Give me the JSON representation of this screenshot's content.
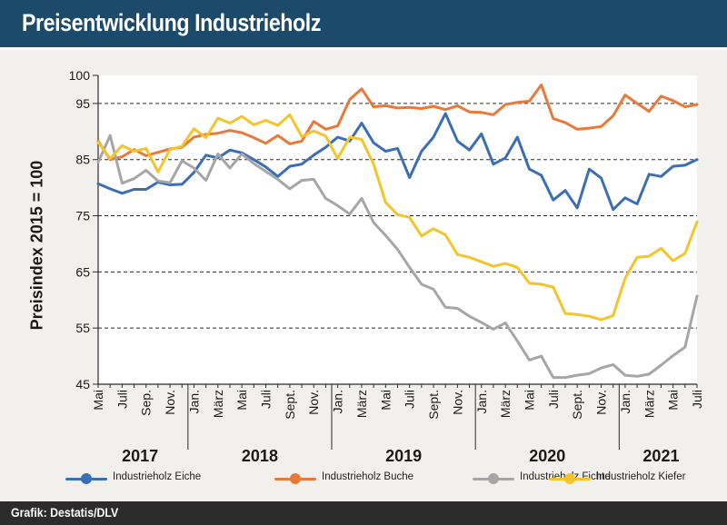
{
  "header": {
    "title": "Preisentwicklung Industrieholz"
  },
  "footer": {
    "credit": "Grafik: Destatis/DLV"
  },
  "colors": {
    "header_bg": "#1c4a6a",
    "eiche": "#3b6eb5",
    "buche": "#e8793a",
    "fichte": "#a6a6a6",
    "kiefer": "#f5c42a"
  },
  "chart_data": {
    "type": "line",
    "ylabel": "Preisindex 2015 = 100",
    "ylim": [
      45,
      100
    ],
    "yticks": [
      45,
      55,
      65,
      75,
      85,
      95,
      100
    ],
    "x": [
      "2017-05",
      "2017-06",
      "2017-07",
      "2017-08",
      "2017-09",
      "2017-10",
      "2017-11",
      "2017-12",
      "2018-01",
      "2018-02",
      "2018-03",
      "2018-04",
      "2018-05",
      "2018-06",
      "2018-07",
      "2018-08",
      "2018-09",
      "2018-10",
      "2018-11",
      "2018-12",
      "2019-01",
      "2019-02",
      "2019-03",
      "2019-04",
      "2019-05",
      "2019-06",
      "2019-07",
      "2019-08",
      "2019-09",
      "2019-10",
      "2019-11",
      "2019-12",
      "2020-01",
      "2020-02",
      "2020-03",
      "2020-04",
      "2020-05",
      "2020-06",
      "2020-07",
      "2020-08",
      "2020-09",
      "2020-10",
      "2020-11",
      "2020-12",
      "2021-01",
      "2021-02",
      "2021-03",
      "2021-04",
      "2021-05",
      "2021-06",
      "2021-07"
    ],
    "tick_labels": [
      {
        "x": "2017-05",
        "label": "Mai"
      },
      {
        "x": "2017-07",
        "label": "Juli"
      },
      {
        "x": "2017-09",
        "label": "Sep."
      },
      {
        "x": "2017-11",
        "label": "Nov."
      },
      {
        "x": "2018-01",
        "label": "Jan."
      },
      {
        "x": "2018-03",
        "label": "März"
      },
      {
        "x": "2018-05",
        "label": "Mai"
      },
      {
        "x": "2018-07",
        "label": "Juli"
      },
      {
        "x": "2018-09",
        "label": "Sept."
      },
      {
        "x": "2018-11",
        "label": "Nov."
      },
      {
        "x": "2019-01",
        "label": "Jan."
      },
      {
        "x": "2019-03",
        "label": "März"
      },
      {
        "x": "2019-05",
        "label": "Mai"
      },
      {
        "x": "2019-07",
        "label": "Juli"
      },
      {
        "x": "2019-09",
        "label": "Sept."
      },
      {
        "x": "2019-11",
        "label": "Nov."
      },
      {
        "x": "2020-01",
        "label": "Jan."
      },
      {
        "x": "2020-03",
        "label": "März"
      },
      {
        "x": "2020-05",
        "label": "Mai"
      },
      {
        "x": "2020-07",
        "label": "Juli"
      },
      {
        "x": "2020-09",
        "label": "Sept."
      },
      {
        "x": "2020-11",
        "label": "Nov."
      },
      {
        "x": "2021-01",
        "label": "Jan."
      },
      {
        "x": "2021-03",
        "label": "März"
      },
      {
        "x": "2021-05",
        "label": "Mai"
      },
      {
        "x": "2021-07",
        "label": "Juli"
      }
    ],
    "years": [
      {
        "label": "2017",
        "from": "2017-05",
        "to": "2017-12"
      },
      {
        "label": "2018",
        "from": "2018-01",
        "to": "2018-12"
      },
      {
        "label": "2019",
        "from": "2019-01",
        "to": "2019-12"
      },
      {
        "label": "2020",
        "from": "2020-01",
        "to": "2020-12"
      },
      {
        "label": "2021",
        "from": "2021-01",
        "to": "2021-07"
      }
    ],
    "grid": "horizontal dashed at y ticks",
    "legend_position": "bottom",
    "series": [
      {
        "name": "Industrieholz Eiche",
        "color": "#3b6eb5",
        "values": [
          80.7,
          79.8,
          79.0,
          79.7,
          79.7,
          81.0,
          80.5,
          80.6,
          82.7,
          85.8,
          85.3,
          86.7,
          86.2,
          85.0,
          83.7,
          82.0,
          83.8,
          84.2,
          85.8,
          87.2,
          89.0,
          88.3,
          91.5,
          88.0,
          86.5,
          87.0,
          81.8,
          86.5,
          89.0,
          93.2,
          88.3,
          86.7,
          89.6,
          84.2,
          85.3,
          89.0,
          83.3,
          82.2,
          77.8,
          79.5,
          76.4,
          83.3,
          81.7,
          76.1,
          78.2,
          77.1,
          82.4,
          82.0,
          83.8,
          84.0,
          85.0
        ]
      },
      {
        "name": "Industrieholz Buche",
        "color": "#e8793a",
        "values": [
          88.3,
          85.0,
          85.5,
          86.8,
          85.7,
          86.3,
          86.9,
          87.2,
          89.0,
          89.5,
          89.7,
          90.2,
          89.8,
          88.9,
          87.9,
          89.3,
          87.8,
          88.3,
          91.8,
          90.4,
          91.0,
          95.7,
          97.6,
          94.4,
          94.6,
          94.2,
          94.3,
          94.1,
          94.5,
          93.9,
          94.6,
          93.5,
          93.4,
          93.0,
          94.8,
          95.2,
          95.4,
          98.3,
          92.3,
          91.6,
          90.4,
          90.6,
          90.9,
          92.8,
          96.5,
          95.0,
          93.6,
          96.3,
          95.5,
          94.4,
          94.8
        ]
      },
      {
        "name": "Industrieholz Fichte",
        "color": "#a6a6a6",
        "values": [
          84.5,
          89.3,
          80.8,
          81.6,
          83.1,
          81.2,
          80.9,
          84.8,
          83.5,
          81.3,
          86.0,
          83.5,
          86.0,
          84.3,
          82.9,
          81.5,
          79.8,
          81.3,
          81.5,
          78.1,
          76.8,
          75.3,
          78.1,
          73.8,
          71.5,
          69.0,
          65.8,
          62.8,
          61.9,
          58.7,
          58.5,
          57.1,
          56.0,
          54.8,
          55.9,
          52.7,
          49.3,
          50.0,
          46.2,
          46.2,
          46.6,
          46.9,
          47.9,
          48.5,
          46.6,
          46.4,
          46.8,
          48.4,
          50.1,
          51.6,
          60.7
        ]
      },
      {
        "name": "Industrieholz Kiefer",
        "color": "#f5c42a",
        "values": [
          88.1,
          85.2,
          87.5,
          86.5,
          87.0,
          82.8,
          86.8,
          87.4,
          90.5,
          88.9,
          92.4,
          91.5,
          92.7,
          91.2,
          92.0,
          91.1,
          93.0,
          89.1,
          90.1,
          89.2,
          85.2,
          89.0,
          88.6,
          84.2,
          77.4,
          75.2,
          74.7,
          71.4,
          72.7,
          71.6,
          68.1,
          67.6,
          66.8,
          66.0,
          66.5,
          65.8,
          63.0,
          62.8,
          62.3,
          57.6,
          57.4,
          57.1,
          56.5,
          57.2,
          63.9,
          67.6,
          67.8,
          69.2,
          67.0,
          68.3,
          73.9
        ]
      }
    ]
  }
}
